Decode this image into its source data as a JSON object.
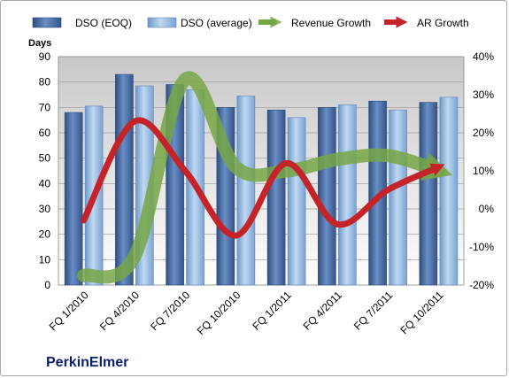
{
  "brand": "PerkinElmer",
  "chart_data": {
    "type": "bar",
    "categories": [
      "FQ 1/2010",
      "FQ 4/2010",
      "FQ 7/2010",
      "FQ 10/2010",
      "FQ 1/2011",
      "FQ 4/2011",
      "FQ 7/2011",
      "FQ 10/2011"
    ],
    "y_left_label": "Days",
    "y_left_ticks": [
      "0",
      "10",
      "20",
      "30",
      "40",
      "50",
      "60",
      "70",
      "80",
      "90"
    ],
    "y_right_ticks": [
      "-20%",
      "-10%",
      "0%",
      "10%",
      "20%",
      "30%",
      "40%"
    ],
    "ylim": [
      0,
      90
    ],
    "ylim_right": [
      -20,
      40
    ],
    "legend_position": "top",
    "series": [
      {
        "name": "DSO (EOQ)",
        "type": "bar",
        "axis": "left",
        "color": "#4a6fa5",
        "values": [
          68,
          83,
          79,
          70,
          69,
          70,
          72.5,
          72
        ]
      },
      {
        "name": "DSO (average)",
        "type": "bar",
        "axis": "left",
        "color": "#8fb6e0",
        "values": [
          70.5,
          78.5,
          77,
          74.5,
          66,
          71,
          69,
          74
        ]
      },
      {
        "name": "Revenue Growth",
        "type": "line",
        "axis": "right",
        "color": "#77a646",
        "values": [
          -17.5,
          -12.5,
          34,
          11,
          10,
          13,
          14,
          10
        ]
      },
      {
        "name": "AR Growth",
        "type": "line",
        "axis": "right",
        "color": "#c42329",
        "values": [
          -3,
          23,
          10,
          -7,
          12,
          -4,
          5,
          11
        ]
      }
    ]
  }
}
